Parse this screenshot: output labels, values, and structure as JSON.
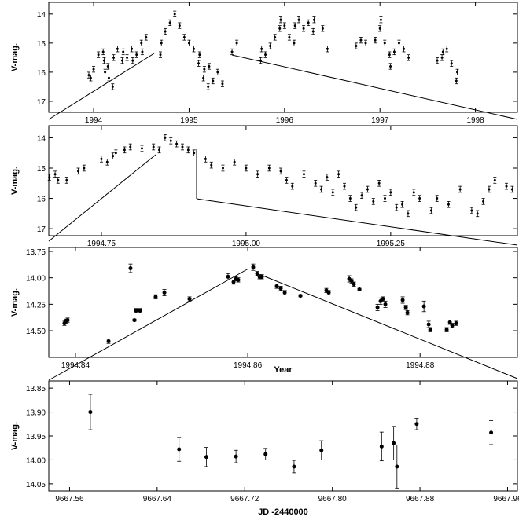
{
  "chart_data": [
    {
      "type": "scatter",
      "ylabel": "V-mag.",
      "y_inverted": true,
      "xlim": [
        1993.53,
        1998.44
      ],
      "ylim": [
        13.6,
        17.38
      ],
      "xticks": [
        1994,
        1995,
        1996,
        1997,
        1998
      ],
      "yticks": [
        14,
        15,
        16,
        17
      ],
      "error": 0.1,
      "x": [
        1993.95,
        1993.97,
        1994.0,
        1994.05,
        1994.1,
        1994.11,
        1994.12,
        1994.15,
        1994.16,
        1994.2,
        1994.21,
        1994.25,
        1994.3,
        1994.31,
        1994.35,
        1994.4,
        1994.41,
        1994.45,
        1994.5,
        1994.51,
        1994.55,
        1994.7,
        1994.71,
        1994.75,
        1994.8,
        1994.85,
        1994.9,
        1994.95,
        1995.0,
        1995.05,
        1995.1,
        1995.11,
        1995.15,
        1995.16,
        1995.2,
        1995.21,
        1995.25,
        1995.3,
        1995.35,
        1995.45,
        1995.5,
        1995.75,
        1995.76,
        1995.8,
        1995.85,
        1995.9,
        1995.95,
        1995.96,
        1996.0,
        1996.05,
        1996.1,
        1996.11,
        1996.15,
        1996.2,
        1996.25,
        1996.3,
        1996.31,
        1996.4,
        1996.45,
        1996.75,
        1996.8,
        1996.85,
        1996.95,
        1997.0,
        1997.01,
        1997.05,
        1997.1,
        1997.11,
        1997.15,
        1997.2,
        1997.25,
        1997.3,
        1997.6,
        1997.65,
        1997.66,
        1997.7,
        1997.75,
        1997.8,
        1997.81
      ],
      "values": [
        16.1,
        16.2,
        15.9,
        15.4,
        15.3,
        15.6,
        16.0,
        15.8,
        16.2,
        16.5,
        15.5,
        15.2,
        15.6,
        15.3,
        15.5,
        15.2,
        15.6,
        15.4,
        15.0,
        15.3,
        14.8,
        15.4,
        15.0,
        14.6,
        14.3,
        14.0,
        14.4,
        14.8,
        15.0,
        15.2,
        15.7,
        15.4,
        16.2,
        15.9,
        16.5,
        15.8,
        16.3,
        16.0,
        16.4,
        15.3,
        15.0,
        15.6,
        15.2,
        15.4,
        15.1,
        14.8,
        14.5,
        14.2,
        14.4,
        14.8,
        15.0,
        14.4,
        14.2,
        14.5,
        14.3,
        14.6,
        14.2,
        14.5,
        15.2,
        15.1,
        14.9,
        15.0,
        14.9,
        14.5,
        14.2,
        15.0,
        15.4,
        15.8,
        15.3,
        15.0,
        15.2,
        15.5,
        15.6,
        15.5,
        15.3,
        15.2,
        15.7,
        16.3,
        16.0
      ]
    },
    {
      "type": "scatter",
      "ylabel": "V-mag.",
      "y_inverted": true,
      "xlim": [
        1994.659,
        1995.469
      ],
      "ylim": [
        13.6,
        17.23
      ],
      "xticks": [
        {
          "value": 1994.75,
          "label": "1994.75"
        },
        {
          "value": 1995,
          "label": "1995.00"
        },
        1995.25
      ],
      "yticks": [
        14,
        15,
        16,
        17
      ],
      "error": 0.1,
      "x": [
        1994.66,
        1994.67,
        1994.675,
        1994.69,
        1994.71,
        1994.72,
        1994.75,
        1994.76,
        1994.77,
        1994.775,
        1994.79,
        1994.8,
        1994.82,
        1994.84,
        1994.85,
        1994.86,
        1994.87,
        1994.88,
        1994.89,
        1994.9,
        1994.91,
        1994.93,
        1994.94,
        1994.96,
        1994.98,
        1995.0,
        1995.02,
        1995.04,
        1995.06,
        1995.07,
        1995.08,
        1995.1,
        1995.12,
        1995.13,
        1995.14,
        1995.15,
        1995.16,
        1995.17,
        1995.18,
        1995.19,
        1995.2,
        1995.21,
        1995.22,
        1995.23,
        1995.24,
        1995.25,
        1995.26,
        1995.27,
        1995.28,
        1995.29,
        1995.3,
        1995.32,
        1995.33,
        1995.35,
        1995.37,
        1995.39,
        1995.4,
        1995.41,
        1995.42,
        1995.43,
        1995.45,
        1995.46
      ],
      "values": [
        15.3,
        15.2,
        15.4,
        15.4,
        15.1,
        15.0,
        14.7,
        14.8,
        14.6,
        14.5,
        14.4,
        14.3,
        14.35,
        14.3,
        14.4,
        14.0,
        14.1,
        14.2,
        14.3,
        14.4,
        14.5,
        14.7,
        14.9,
        15.0,
        14.8,
        15.0,
        15.2,
        15.0,
        15.1,
        15.4,
        15.6,
        15.2,
        15.5,
        15.7,
        15.3,
        15.8,
        15.2,
        15.6,
        16.0,
        16.3,
        15.9,
        15.7,
        16.1,
        15.5,
        16.0,
        15.8,
        16.3,
        16.2,
        16.5,
        15.8,
        16.0,
        16.4,
        16.0,
        16.2,
        15.7,
        16.4,
        16.5,
        16.1,
        15.7,
        15.4,
        15.6,
        15.7
      ]
    },
    {
      "type": "scatter",
      "ylabel": "V-mag.",
      "xlabel": "Year",
      "y_inverted": true,
      "xlim": [
        1994.8369,
        1994.8913
      ],
      "ylim": [
        13.713,
        14.752
      ],
      "xticks": [
        1994.84,
        1994.86,
        1994.88
      ],
      "yticks": [
        13.75,
        {
          "value": 14,
          "label": "14.00"
        },
        14.25,
        {
          "value": 14.5,
          "label": "14.50"
        }
      ],
      "x": [
        1994.83872,
        1994.8389,
        1994.83909,
        1994.84384,
        1994.84639,
        1994.84685,
        1994.84703,
        1994.84749,
        1994.84931,
        1994.85032,
        1994.85324,
        1994.85771,
        1994.85835,
        1994.85863,
        1994.8589,
        1994.86063,
        1994.86109,
        1994.86137,
        1994.86164,
        1994.86337,
        1994.86383,
        1994.86429,
        1994.86611,
        1994.86912,
        1994.8694,
        1994.87177,
        1994.87205,
        1994.87232,
        1994.87296,
        1994.87506,
        1994.87542,
        1994.8757,
        1994.87597,
        1994.87798,
        1994.87835,
        1994.87853,
        1994.88045,
        1994.881,
        1994.88118,
        1994.88309,
        1994.88346,
        1994.88373,
        1994.88419
      ],
      "values": [
        14.43,
        14.41,
        14.4,
        14.6,
        13.91,
        14.4,
        14.31,
        14.31,
        14.18,
        14.14,
        14.2,
        13.99,
        14.04,
        14.01,
        14.02,
        13.9,
        13.96,
        13.99,
        13.99,
        14.08,
        14.1,
        14.14,
        14.17,
        14.12,
        14.14,
        14.01,
        14.03,
        14.06,
        14.11,
        14.28,
        14.22,
        14.2,
        14.25,
        14.21,
        14.28,
        14.33,
        14.27,
        14.44,
        14.49,
        14.49,
        14.42,
        14.45,
        14.43
      ],
      "errors": [
        0.02,
        0.02,
        0.02,
        0.02,
        0.04,
        0.01,
        0.02,
        0.02,
        0.02,
        0.03,
        0.02,
        0.03,
        0.02,
        0.02,
        0.02,
        0.03,
        0.02,
        0.02,
        0.02,
        0.02,
        0.02,
        0.02,
        0.01,
        0.02,
        0.02,
        0.03,
        0.02,
        0.02,
        0.01,
        0.03,
        0.03,
        0.02,
        0.03,
        0.03,
        0.02,
        0.02,
        0.05,
        0.03,
        0.02,
        0.02,
        0.02,
        0.02,
        0.02
      ]
    },
    {
      "type": "scatter",
      "ylabel": "V-mag.",
      "xlabel": "JD -2440000",
      "y_inverted": true,
      "xlim": [
        9667.541,
        9667.969
      ],
      "ylim": [
        13.835,
        14.065
      ],
      "xticks": [
        9667.56,
        9667.64,
        9667.72,
        {
          "value": 9667.8,
          "label": "9667.80"
        },
        9667.88,
        9667.96
      ],
      "yticks": [
        13.85,
        {
          "value": 13.9,
          "label": "13.90"
        },
        13.95,
        {
          "value": 14,
          "label": "14.00"
        },
        14.05
      ],
      "x": [
        9667.579,
        9667.66,
        9667.685,
        9667.712,
        9667.739,
        9667.765,
        9667.79,
        9667.845,
        9667.856,
        9667.859,
        9667.877,
        9667.945
      ],
      "values": [
        13.9,
        13.978,
        13.994,
        13.993,
        13.988,
        14.014,
        13.98,
        13.972,
        13.965,
        14.014,
        13.925,
        13.943
      ],
      "errors": [
        0.037,
        0.025,
        0.02,
        0.013,
        0.012,
        0.013,
        0.02,
        0.03,
        0.035,
        0.045,
        0.012,
        0.025
      ]
    }
  ]
}
